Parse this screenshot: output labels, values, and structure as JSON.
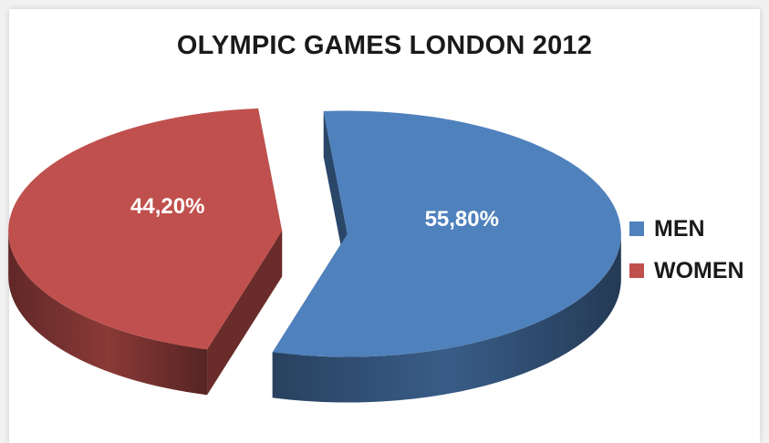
{
  "chart_data": {
    "type": "pie",
    "title": "OLYMPIC GAMES LONDON 2012",
    "slices": [
      {
        "label": "MEN",
        "value": 55.8,
        "value_label": "55,80%",
        "color": "#4f81bd"
      },
      {
        "label": "WOMEN",
        "value": 44.2,
        "value_label": "44,20%",
        "color": "#c0504d"
      }
    ],
    "exploded": true,
    "three_d": true,
    "legend_position": "right"
  }
}
